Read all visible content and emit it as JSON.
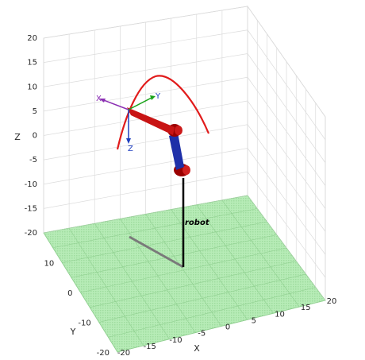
{
  "chart_data": {
    "type": "3d-scene",
    "xlabel": "X",
    "ylabel": "Y",
    "zlabel": "Z",
    "xlim": [
      -20,
      20
    ],
    "ylim": [
      -20,
      20
    ],
    "zlim": [
      -20,
      20
    ],
    "x_ticks": [
      "-20",
      "-15",
      "-10",
      "-5",
      "0",
      "5",
      "10",
      "15",
      "20"
    ],
    "y_ticks": [
      "-20",
      "-10",
      "0",
      "10"
    ],
    "z_ticks": [
      "-20",
      "-15",
      "-10",
      "-5",
      "0",
      "5",
      "10",
      "15",
      "20"
    ],
    "grid": true,
    "floor_color": "#a8e6a8",
    "trajectory_color": "#e11b1b",
    "robot_label": "robot",
    "frame_axes": [
      {
        "label": "X",
        "color": "#8b2fb3"
      },
      {
        "label": "Y",
        "color": "#1aa31a"
      },
      {
        "label": "Z",
        "color": "#1f3fbf"
      }
    ],
    "links": [
      {
        "name": "base",
        "color": "#000000"
      },
      {
        "name": "link1",
        "color": "#1e2fa8"
      },
      {
        "name": "link2",
        "color": "#c81414"
      }
    ],
    "joint_color": "#a00000"
  }
}
